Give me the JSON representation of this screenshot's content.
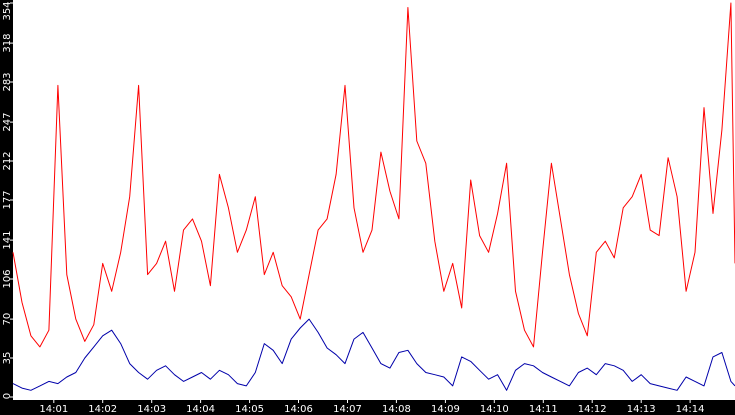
{
  "chart_data": {
    "type": "line",
    "title": "",
    "xlabel": "",
    "ylabel": "",
    "ylim": [
      0,
      354
    ],
    "y_ticks": [
      0,
      35,
      70,
      106,
      141,
      177,
      212,
      247,
      283,
      318,
      354
    ],
    "x_ticks": [
      "14:01",
      "14:02",
      "14:03",
      "14:04",
      "14:05",
      "14:06",
      "14:07",
      "14:08",
      "14:09",
      "14:10",
      "14:11",
      "14:12",
      "14:13",
      "14:14"
    ],
    "grid": false,
    "legend": "none",
    "background": "#ffffff",
    "axis_band_color": "#000000",
    "tick_label_color": "#ffffff",
    "x_start": "14:00:10",
    "x_end": "14:14:55",
    "series": [
      {
        "color": "#ff0000",
        "x": [
          "14:00:10",
          "14:00:21",
          "14:00:32",
          "14:00:43",
          "14:00:54",
          "14:01:05",
          "14:01:16",
          "14:01:27",
          "14:01:38",
          "14:01:49",
          "14:02:00",
          "14:02:11",
          "14:02:22",
          "14:02:33",
          "14:02:44",
          "14:02:55",
          "14:03:06",
          "14:03:17",
          "14:03:28",
          "14:03:39",
          "14:03:50",
          "14:04:01",
          "14:04:12",
          "14:04:23",
          "14:04:34",
          "14:04:45",
          "14:04:56",
          "14:05:07",
          "14:05:18",
          "14:05:29",
          "14:05:40",
          "14:05:51",
          "14:06:02",
          "14:06:13",
          "14:06:24",
          "14:06:35",
          "14:06:46",
          "14:06:57",
          "14:07:08",
          "14:07:19",
          "14:07:30",
          "14:07:41",
          "14:07:52",
          "14:08:03",
          "14:08:14",
          "14:08:25",
          "14:08:36",
          "14:08:47",
          "14:08:58",
          "14:09:09",
          "14:09:20",
          "14:09:31",
          "14:09:42",
          "14:09:53",
          "14:10:04",
          "14:10:15",
          "14:10:26",
          "14:10:37",
          "14:10:48",
          "14:10:59",
          "14:11:10",
          "14:11:21",
          "14:11:32",
          "14:11:43",
          "14:11:54",
          "14:12:05",
          "14:12:16",
          "14:12:27",
          "14:12:38",
          "14:12:49",
          "14:13:00",
          "14:13:11",
          "14:13:22",
          "14:13:33",
          "14:13:44",
          "14:13:55",
          "14:14:06",
          "14:14:17",
          "14:14:28",
          "14:14:39",
          "14:14:50",
          "14:14:55"
        ],
        "values": [
          130,
          85,
          55,
          45,
          60,
          280,
          110,
          70,
          50,
          65,
          120,
          95,
          130,
          180,
          280,
          110,
          120,
          140,
          95,
          150,
          160,
          140,
          100,
          200,
          170,
          130,
          150,
          180,
          110,
          130,
          100,
          90,
          70,
          110,
          150,
          160,
          200,
          280,
          170,
          130,
          150,
          220,
          185,
          160,
          350,
          230,
          210,
          140,
          95,
          120,
          80,
          195,
          145,
          130,
          165,
          210,
          95,
          60,
          45,
          130,
          210,
          160,
          110,
          75,
          55,
          130,
          140,
          125,
          170,
          180,
          200,
          150,
          145,
          215,
          180,
          95,
          130,
          260,
          165,
          240,
          354,
          120
        ]
      },
      {
        "color": "#0000aa",
        "x": [
          "14:00:10",
          "14:00:21",
          "14:00:32",
          "14:00:43",
          "14:00:54",
          "14:01:05",
          "14:01:16",
          "14:01:27",
          "14:01:38",
          "14:01:49",
          "14:02:00",
          "14:02:11",
          "14:02:22",
          "14:02:33",
          "14:02:44",
          "14:02:55",
          "14:03:06",
          "14:03:17",
          "14:03:28",
          "14:03:39",
          "14:03:50",
          "14:04:01",
          "14:04:12",
          "14:04:23",
          "14:04:34",
          "14:04:45",
          "14:04:56",
          "14:05:07",
          "14:05:18",
          "14:05:29",
          "14:05:40",
          "14:05:51",
          "14:06:02",
          "14:06:13",
          "14:06:24",
          "14:06:35",
          "14:06:46",
          "14:06:57",
          "14:07:08",
          "14:07:19",
          "14:07:30",
          "14:07:41",
          "14:07:52",
          "14:08:03",
          "14:08:14",
          "14:08:25",
          "14:08:36",
          "14:08:47",
          "14:08:58",
          "14:09:09",
          "14:09:20",
          "14:09:31",
          "14:09:42",
          "14:09:53",
          "14:10:04",
          "14:10:15",
          "14:10:26",
          "14:10:37",
          "14:10:48",
          "14:10:59",
          "14:11:10",
          "14:11:21",
          "14:11:32",
          "14:11:43",
          "14:11:54",
          "14:12:05",
          "14:12:16",
          "14:12:27",
          "14:12:38",
          "14:12:49",
          "14:13:00",
          "14:13:11",
          "14:13:22",
          "14:13:33",
          "14:13:44",
          "14:13:55",
          "14:14:06",
          "14:14:17",
          "14:14:28",
          "14:14:39",
          "14:14:50",
          "14:14:55"
        ],
        "values": [
          12,
          8,
          6,
          10,
          14,
          12,
          18,
          22,
          35,
          45,
          55,
          60,
          48,
          30,
          22,
          16,
          24,
          28,
          20,
          14,
          18,
          22,
          16,
          24,
          20,
          12,
          10,
          22,
          48,
          42,
          30,
          52,
          62,
          70,
          58,
          44,
          38,
          30,
          52,
          58,
          44,
          30,
          26,
          40,
          42,
          30,
          22,
          20,
          18,
          10,
          36,
          32,
          24,
          16,
          20,
          6,
          24,
          30,
          28,
          22,
          18,
          14,
          10,
          22,
          26,
          20,
          30,
          28,
          24,
          14,
          20,
          12,
          10,
          8,
          6,
          18,
          14,
          10,
          36,
          40,
          14,
          10
        ]
      }
    ]
  }
}
